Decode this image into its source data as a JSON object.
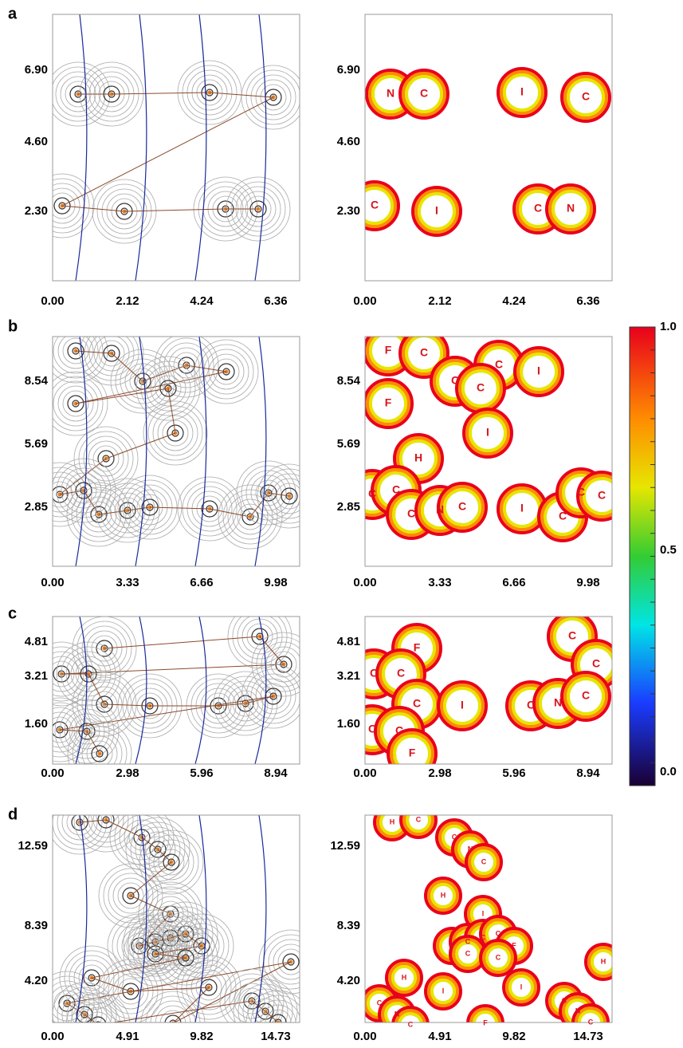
{
  "panels": [
    {
      "letter": "a",
      "yticks": [
        "6.90",
        "4.60",
        "2.30"
      ],
      "xticks": [
        "0.00",
        "2.12",
        "4.24",
        "6.36"
      ],
      "atoms": [
        "N",
        "C",
        "I",
        "C",
        "C",
        "I",
        "C",
        "N"
      ]
    },
    {
      "letter": "b",
      "yticks": [
        "8.54",
        "5.69",
        "2.85"
      ],
      "xticks": [
        "0.00",
        "3.33",
        "6.66",
        "9.98"
      ],
      "atoms": [
        "F",
        "C",
        "C",
        "C",
        "I",
        "F",
        "C",
        "I",
        "H",
        "C",
        "C",
        "C",
        "N",
        "C",
        "I",
        "C",
        "C",
        "C"
      ]
    },
    {
      "letter": "c",
      "yticks": [
        "4.81",
        "3.21",
        "1.60"
      ],
      "xticks": [
        "0.00",
        "2.98",
        "5.96",
        "8.94"
      ],
      "atoms": [
        "F",
        "C",
        "C",
        "C",
        "C",
        "C",
        "I",
        "C",
        "N",
        "C",
        "C",
        "C",
        "F"
      ]
    },
    {
      "letter": "d",
      "yticks": [
        "12.59",
        "8.39",
        "4.20"
      ],
      "xticks": [
        "0.00",
        "4.91",
        "9.82",
        "14.73"
      ],
      "atoms": [
        "H",
        "C",
        "C",
        "N",
        "C",
        "H",
        "I",
        "F",
        "C",
        "C",
        "C",
        "F",
        "C",
        "C",
        "H",
        "I",
        "I",
        "F",
        "H",
        "C",
        "N",
        "C",
        "C",
        "N",
        "C"
      ]
    }
  ],
  "colorbar": {
    "ticks": [
      "1.0",
      "0.5",
      "0.0"
    ]
  }
}
